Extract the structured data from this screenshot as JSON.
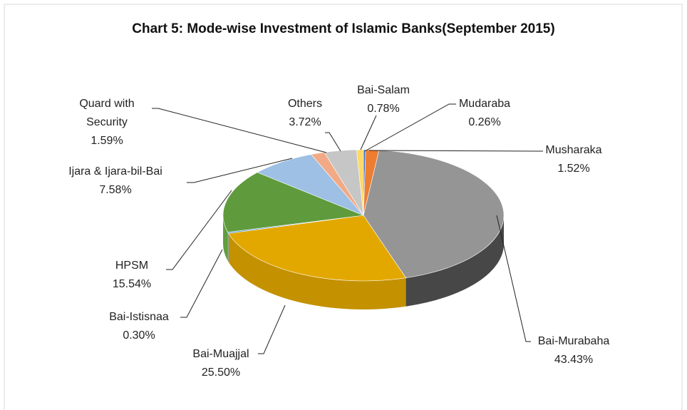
{
  "chart_data": {
    "type": "pie",
    "title": "Chart 5: Mode-wise Investment of Islamic Banks(September 2015)",
    "categories": [
      "Mudaraba",
      "Musharaka",
      "Bai-Murabaha",
      "Bai-Muajjal",
      "Bai-Istisnaa",
      "HPSM",
      "Ijara & Ijara-bil-Bai",
      "Quard with Security",
      "Others",
      "Bai-Salam"
    ],
    "values": [
      0.26,
      1.52,
      43.43,
      25.5,
      0.3,
      15.54,
      7.58,
      1.59,
      3.72,
      0.78
    ],
    "value_labels": [
      "0.26%",
      "1.52%",
      "43.43%",
      "25.50%",
      "0.30%",
      "15.54%",
      "7.58%",
      "1.59%",
      "3.72%",
      "0.78%"
    ],
    "colors": [
      "#4472c4",
      "#ed7d31",
      "#959595",
      "#e3a800",
      "#5b9bd5",
      "#5f9b3d",
      "#9dc0e4",
      "#f2aa86",
      "#c6c6c6",
      "#ffd966"
    ]
  }
}
